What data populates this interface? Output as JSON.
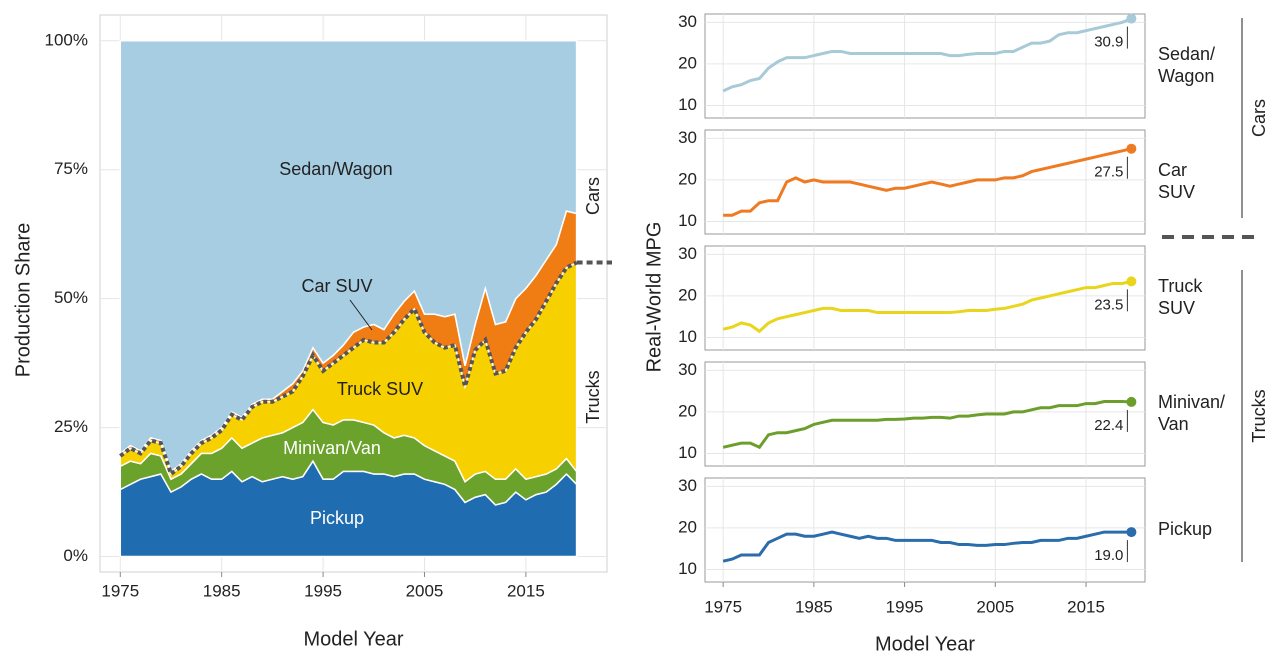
{
  "chart_data": [
    {
      "type": "stacked_area",
      "xlabel": "Model Year",
      "ylabel": "Production Share",
      "annotations": [
        "Cars",
        "Trucks"
      ],
      "x": [
        1975,
        1976,
        1977,
        1978,
        1979,
        1980,
        1981,
        1982,
        1983,
        1984,
        1985,
        1986,
        1987,
        1988,
        1989,
        1990,
        1991,
        1992,
        1993,
        1994,
        1995,
        1996,
        1997,
        1998,
        1999,
        2000,
        2001,
        2002,
        2003,
        2004,
        2005,
        2006,
        2007,
        2008,
        2009,
        2010,
        2011,
        2012,
        2013,
        2014,
        2015,
        2016,
        2017,
        2018,
        2019,
        2020
      ],
      "xlim": [
        1973,
        2023
      ],
      "xticks": [
        1975,
        1985,
        1995,
        2005,
        2015
      ],
      "ylim": [
        -3,
        105
      ],
      "yticks": [
        {
          "value": 0,
          "label": "0%"
        },
        {
          "value": 25,
          "label": "25%"
        },
        {
          "value": 50,
          "label": "50%"
        },
        {
          "value": 75,
          "label": "75%"
        },
        {
          "value": 100,
          "label": "100%"
        }
      ],
      "grid": true,
      "series": [
        {
          "name": "Pickup",
          "color": "#1f6db0",
          "values": [
            13,
            14,
            15,
            15.5,
            16,
            12.5,
            13.5,
            15,
            16,
            15,
            15,
            16.5,
            14.5,
            15.5,
            14.5,
            15,
            15.5,
            15,
            15.5,
            18.5,
            15,
            15,
            16.5,
            16.5,
            16.5,
            16,
            16,
            15.5,
            16,
            16,
            15,
            14.5,
            14,
            13,
            10.5,
            11.5,
            12,
            10,
            10.5,
            12.5,
            11,
            12,
            12.5,
            14,
            16,
            14
          ]
        },
        {
          "name": "Minivan/Van",
          "color": "#6aa22b",
          "values": [
            4.5,
            4.5,
            3,
            4.5,
            3.5,
            2.5,
            2.5,
            3,
            4,
            5,
            6,
            6.5,
            6.5,
            6.5,
            8.5,
            8.5,
            8.5,
            10,
            10.5,
            10,
            11,
            10.5,
            10,
            10,
            9.5,
            9.5,
            8,
            7.5,
            7.5,
            7,
            6.5,
            6,
            5.5,
            5.5,
            4,
            4.5,
            4.5,
            5,
            4.5,
            4.5,
            4,
            3.5,
            3.5,
            3,
            3,
            2.5
          ]
        },
        {
          "name": "Truck SUV",
          "color": "#f7d000",
          "values": [
            2,
            2.5,
            2,
            2.5,
            2.5,
            1,
            1.5,
            2,
            2,
            3,
            3.5,
            4.5,
            5.5,
            7,
            7,
            6.5,
            7,
            7,
            9,
            10.5,
            10,
            12,
            12.5,
            14,
            16,
            16,
            17.5,
            20.5,
            22.5,
            25,
            22,
            21,
            21,
            22.5,
            18.5,
            24,
            25.5,
            20.5,
            21,
            23.5,
            28.5,
            30.5,
            33.5,
            36,
            37,
            40.5
          ]
        },
        {
          "name": "Car SUV",
          "color": "#f07c14",
          "values": [
            0.5,
            0.5,
            0.5,
            0.5,
            0.5,
            0.5,
            0.5,
            0.5,
            0.5,
            0.5,
            0.5,
            0.5,
            0.5,
            0.5,
            0.5,
            0.5,
            1,
            1.5,
            1,
            1.5,
            1.5,
            1.5,
            2,
            3,
            2.5,
            3.5,
            2.5,
            3.5,
            3.5,
            3.5,
            3.5,
            5.5,
            6,
            6,
            4,
            5,
            10,
            9.5,
            9.5,
            9.5,
            8.5,
            8.5,
            8,
            7.5,
            11,
            9.5
          ]
        },
        {
          "name": "Sedan/Wagon",
          "color": "#a7cde2",
          "values": [
            80,
            78.5,
            79.5,
            77,
            77.5,
            83.5,
            82,
            79.5,
            77.5,
            76.5,
            75,
            72,
            73,
            70.5,
            69.5,
            69.5,
            68,
            66.5,
            64,
            59.5,
            62.5,
            61,
            59,
            56.5,
            55.5,
            55,
            56,
            53,
            50.5,
            48.5,
            53,
            53,
            53.5,
            53,
            63,
            55,
            48,
            55,
            54.5,
            50,
            48,
            45.5,
            42.5,
            39.5,
            33,
            33.5
          ]
        }
      ]
    },
    {
      "type": "line",
      "xlabel": "Model Year",
      "ylabel": "Real-World MPG",
      "annotations": [
        "Cars",
        "Trucks"
      ],
      "x": [
        1975,
        1976,
        1977,
        1978,
        1979,
        1980,
        1981,
        1982,
        1983,
        1984,
        1985,
        1986,
        1987,
        1988,
        1989,
        1990,
        1991,
        1992,
        1993,
        1994,
        1995,
        1996,
        1997,
        1998,
        1999,
        2000,
        2001,
        2002,
        2003,
        2004,
        2005,
        2006,
        2007,
        2008,
        2009,
        2010,
        2011,
        2012,
        2013,
        2014,
        2015,
        2016,
        2017,
        2018,
        2019,
        2020
      ],
      "xlim": [
        1973,
        2021.5
      ],
      "xticks": [
        1975,
        1985,
        1995,
        2005,
        2015
      ],
      "ylim": [
        7,
        32
      ],
      "yticks": [
        10,
        20,
        30
      ],
      "grid": true,
      "series": [
        {
          "name": "Sedan/Wagon",
          "color": "#a8cad8",
          "values": [
            13.5,
            14.5,
            15,
            16,
            16.5,
            19,
            20.5,
            21.5,
            21.5,
            21.5,
            22,
            22.5,
            23,
            23,
            22.5,
            22.5,
            22.5,
            22.5,
            22.5,
            22.5,
            22.5,
            22.5,
            22.5,
            22.5,
            22.5,
            22,
            22,
            22.3,
            22.5,
            22.5,
            22.5,
            23,
            23,
            24,
            25,
            25,
            25.5,
            27,
            27.5,
            27.5,
            28,
            28.5,
            29,
            29.5,
            30,
            30.9
          ],
          "value_labels": [
            null,
            null,
            null,
            null,
            null,
            null,
            null,
            null,
            null,
            null,
            null,
            null,
            null,
            null,
            null,
            null,
            null,
            null,
            null,
            null,
            null,
            null,
            null,
            null,
            null,
            null,
            null,
            null,
            null,
            null,
            null,
            null,
            null,
            null,
            null,
            null,
            null,
            null,
            null,
            null,
            null,
            null,
            null,
            null,
            null,
            "30.9"
          ]
        },
        {
          "name": "Car SUV",
          "color": "#ee7a22",
          "values": [
            11.5,
            11.5,
            12.5,
            12.5,
            14.5,
            15,
            15,
            19.5,
            20.5,
            19.5,
            20,
            19.5,
            19.5,
            19.5,
            19.5,
            19,
            18.5,
            18,
            17.5,
            18,
            18,
            18.5,
            19,
            19.5,
            19,
            18.5,
            19,
            19.5,
            20,
            20,
            20,
            20.5,
            20.5,
            21,
            22,
            22.5,
            23,
            23.5,
            24,
            24.5,
            25,
            25.5,
            26,
            26.5,
            27,
            27.5
          ],
          "value_labels": [
            null,
            null,
            null,
            null,
            null,
            null,
            null,
            null,
            null,
            null,
            null,
            null,
            null,
            null,
            null,
            null,
            null,
            null,
            null,
            null,
            null,
            null,
            null,
            null,
            null,
            null,
            null,
            null,
            null,
            null,
            null,
            null,
            null,
            null,
            null,
            null,
            null,
            null,
            null,
            null,
            null,
            null,
            null,
            null,
            null,
            "27.5"
          ]
        },
        {
          "name": "Truck SUV",
          "color": "#e9d51c",
          "values": [
            12,
            12.5,
            13.5,
            13,
            11.5,
            13.5,
            14.5,
            15,
            15.5,
            16,
            16.5,
            17,
            17,
            16.5,
            16.5,
            16.5,
            16.5,
            16,
            16,
            16,
            16,
            16,
            16,
            16,
            16,
            16,
            16.2,
            16.5,
            16.5,
            16.5,
            16.8,
            17,
            17.5,
            18,
            19,
            19.5,
            20,
            20.5,
            21,
            21.5,
            22,
            22,
            22.5,
            23,
            23,
            23.5
          ],
          "value_labels": [
            null,
            null,
            null,
            null,
            null,
            null,
            null,
            null,
            null,
            null,
            null,
            null,
            null,
            null,
            null,
            null,
            null,
            null,
            null,
            null,
            null,
            null,
            null,
            null,
            null,
            null,
            null,
            null,
            null,
            null,
            null,
            null,
            null,
            null,
            null,
            null,
            null,
            null,
            null,
            null,
            null,
            null,
            null,
            null,
            null,
            "23.5"
          ]
        },
        {
          "name": "Minivan/Van",
          "color": "#6c9e2c",
          "values": [
            11.5,
            12,
            12.5,
            12.5,
            11.5,
            14.5,
            15,
            15,
            15.5,
            16,
            17,
            17.5,
            18,
            18,
            18,
            18,
            18,
            18,
            18.2,
            18.2,
            18.3,
            18.5,
            18.5,
            18.7,
            18.7,
            18.5,
            19,
            19,
            19.3,
            19.5,
            19.5,
            19.5,
            20,
            20,
            20.5,
            21,
            21,
            21.5,
            21.5,
            21.5,
            22,
            22,
            22.5,
            22.5,
            22.5,
            22.4
          ],
          "value_labels": [
            null,
            null,
            null,
            null,
            null,
            null,
            null,
            null,
            null,
            null,
            null,
            null,
            null,
            null,
            null,
            null,
            null,
            null,
            null,
            null,
            null,
            null,
            null,
            null,
            null,
            null,
            null,
            null,
            null,
            null,
            null,
            null,
            null,
            null,
            null,
            null,
            null,
            null,
            null,
            null,
            null,
            null,
            null,
            null,
            null,
            "22.4"
          ]
        },
        {
          "name": "Pickup",
          "color": "#2a6daa",
          "values": [
            12,
            12.5,
            13.5,
            13.5,
            13.5,
            16.5,
            17.5,
            18.5,
            18.5,
            18,
            18,
            18.5,
            19,
            18.5,
            18,
            17.5,
            18,
            17.5,
            17.5,
            17,
            17,
            17,
            17,
            17,
            16.5,
            16.5,
            16,
            16,
            15.8,
            15.8,
            16,
            16,
            16.3,
            16.5,
            16.5,
            17,
            17,
            17,
            17.5,
            17.5,
            18,
            18.5,
            19,
            19,
            19,
            19
          ],
          "value_labels": [
            null,
            null,
            null,
            null,
            null,
            null,
            null,
            null,
            null,
            null,
            null,
            null,
            null,
            null,
            null,
            null,
            null,
            null,
            null,
            null,
            null,
            null,
            null,
            null,
            null,
            null,
            null,
            null,
            null,
            null,
            null,
            null,
            null,
            null,
            null,
            null,
            null,
            null,
            null,
            null,
            null,
            null,
            null,
            null,
            null,
            "19.0"
          ]
        }
      ]
    }
  ]
}
